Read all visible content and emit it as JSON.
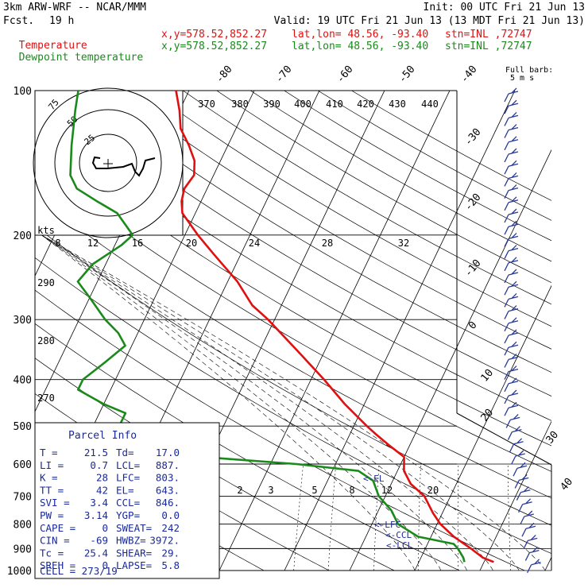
{
  "header": {
    "model": "3km ARW-WRF -- NCAR/MMM",
    "init": "Init: 00 UTC Fri 21 Jun 13",
    "fcst_label": "Fcst.",
    "fcst_value": "19 h",
    "valid": "Valid: 19 UTC Fri 21 Jun 13 (13 MDT Fri 21 Jun 13)",
    "temp_line": {
      "name": "Temperature",
      "coords": "x,y=578.52,852.27",
      "latlon": "lat,lon= 48.56, -93.40",
      "stn": "stn=INL ,72747"
    },
    "dew_line": {
      "name": "Dewpoint temperature",
      "coords": "x,y=578.52,852.27",
      "latlon": "lat,lon= 48.56, -93.40",
      "stn": "stn=INL ,72747"
    }
  },
  "colors": {
    "temperature": "#e01010",
    "dewpoint": "#1a8a1a",
    "axes": "#000000",
    "info_text": "#1a2a9a",
    "barbs": "#2a3a9a"
  },
  "full_barb_label": "Full barb:",
  "full_barb_value": "5 m s",
  "hodograph": {
    "rings": [
      "75",
      "50",
      "25"
    ],
    "speed_labels": [
      "kts",
      "8",
      "12",
      "16",
      "20",
      "24",
      "28",
      "32"
    ]
  },
  "theta_labels": [
    "370",
    "380",
    "390",
    "400",
    "410",
    "420",
    "430",
    "440"
  ],
  "theta_left_labels": [
    "290",
    "280",
    "270"
  ],
  "mixing_labels": [
    "2",
    "3",
    "5",
    "8",
    "12",
    "20"
  ],
  "level_markers": [
    "<-EL",
    "<-LFC",
    "<-CCL",
    "<-LCL"
  ],
  "parcel_info": {
    "title": "Parcel Info",
    "rows": [
      {
        "k1": "T",
        "v1": "21.5",
        "k2": "Td",
        "v2": "17.0"
      },
      {
        "k1": "LI",
        "v1": "0.7",
        "k2": "LCL",
        "v2": "887."
      },
      {
        "k1": "K",
        "v1": "28",
        "k2": "LFC",
        "v2": "803."
      },
      {
        "k1": "TT",
        "v1": "42",
        "k2": "EL",
        "v2": "643."
      },
      {
        "k1": "SVI",
        "v1": "3.4",
        "k2": "CCL",
        "v2": "846."
      },
      {
        "k1": "PW",
        "v1": "3.14",
        "k2": "YGP",
        "v2": "0.0"
      },
      {
        "k1": "CAPE",
        "v1": "0",
        "k2": "SWEAT",
        "v2": "242"
      },
      {
        "k1": "CIN",
        "v1": "-69",
        "k2": "HWBZ",
        "v2": "3972."
      },
      {
        "k1": "Tc",
        "v1": "25.4",
        "k2": "SHEAR",
        "v2": "29."
      },
      {
        "k1": "SREH",
        "v1": "0",
        "k2": "LAPSE",
        "v2": "5.8"
      }
    ],
    "cell": "CELL = 273/19"
  },
  "chart_data": {
    "type": "line",
    "title": "",
    "xlabel": "",
    "ylabel": "",
    "y_scale": "log-pressure",
    "ylim": [
      1000,
      100
    ],
    "pressure_ticks": [
      100,
      200,
      300,
      400,
      500,
      600,
      700,
      800,
      900,
      1000
    ],
    "temperature_ticks": [
      -80,
      -70,
      -60,
      -50,
      -40,
      -30,
      -20,
      -10,
      0,
      10,
      20,
      30,
      40
    ],
    "series": [
      {
        "name": "Temperature",
        "color": "#e01010",
        "points": [
          {
            "p": 960,
            "t": 21.5
          },
          {
            "p": 940,
            "t": 19.5
          },
          {
            "p": 900,
            "t": 17.0
          },
          {
            "p": 850,
            "t": 13.5
          },
          {
            "p": 800,
            "t": 10.5
          },
          {
            "p": 760,
            "t": 8.6
          },
          {
            "p": 700,
            "t": 6.0
          },
          {
            "p": 660,
            "t": 3.0
          },
          {
            "p": 620,
            "t": 1.0
          },
          {
            "p": 580,
            "t": 0.0
          },
          {
            "p": 550,
            "t": -3.0
          },
          {
            "p": 520,
            "t": -6.0
          },
          {
            "p": 500,
            "t": -8.0
          },
          {
            "p": 450,
            "t": -13.0
          },
          {
            "p": 400,
            "t": -18.0
          },
          {
            "p": 350,
            "t": -24.0
          },
          {
            "p": 300,
            "t": -31.0
          },
          {
            "p": 280,
            "t": -34.5
          },
          {
            "p": 250,
            "t": -38.5
          },
          {
            "p": 220,
            "t": -44.0
          },
          {
            "p": 200,
            "t": -48.0
          },
          {
            "p": 180,
            "t": -52.0
          },
          {
            "p": 170,
            "t": -53.0
          },
          {
            "p": 160,
            "t": -53.5
          },
          {
            "p": 150,
            "t": -53.0
          },
          {
            "p": 140,
            "t": -54.0
          },
          {
            "p": 130,
            "t": -56.0
          },
          {
            "p": 120,
            "t": -58.5
          },
          {
            "p": 110,
            "t": -60.0
          },
          {
            "p": 100,
            "t": -62.0
          }
        ]
      },
      {
        "name": "Dewpoint temperature",
        "color": "#1a8a1a",
        "points": [
          {
            "p": 960,
            "t": 17.0
          },
          {
            "p": 940,
            "t": 16.5
          },
          {
            "p": 900,
            "t": 15.0
          },
          {
            "p": 880,
            "t": 14.0
          },
          {
            "p": 850,
            "t": 8.0
          },
          {
            "p": 800,
            "t": 4.0
          },
          {
            "p": 750,
            "t": 2.0
          },
          {
            "p": 700,
            "t": -1.0
          },
          {
            "p": 650,
            "t": -3.0
          },
          {
            "p": 620,
            "t": -6.0
          },
          {
            "p": 600,
            "t": -16.0
          },
          {
            "p": 580,
            "t": -31.0
          },
          {
            "p": 560,
            "t": -44.0
          },
          {
            "p": 540,
            "t": -50.0
          },
          {
            "p": 525,
            "t": -53.0
          },
          {
            "p": 500,
            "t": -46.0
          },
          {
            "p": 470,
            "t": -46.0
          },
          {
            "p": 450,
            "t": -50.0
          },
          {
            "p": 420,
            "t": -55.0
          },
          {
            "p": 400,
            "t": -55.0
          },
          {
            "p": 370,
            "t": -53.0
          },
          {
            "p": 340,
            "t": -51.0
          },
          {
            "p": 320,
            "t": -53.0
          },
          {
            "p": 300,
            "t": -56.0
          },
          {
            "p": 270,
            "t": -60.0
          },
          {
            "p": 250,
            "t": -63.0
          },
          {
            "p": 230,
            "t": -62.0
          },
          {
            "p": 210,
            "t": -59.0
          },
          {
            "p": 200,
            "t": -58.0
          },
          {
            "p": 180,
            "t": -62.0
          },
          {
            "p": 170,
            "t": -66.0
          },
          {
            "p": 160,
            "t": -70.0
          },
          {
            "p": 150,
            "t": -72.0
          },
          {
            "p": 130,
            "t": -74.0
          },
          {
            "p": 110,
            "t": -76.0
          },
          {
            "p": 100,
            "t": -77.0
          }
        ]
      }
    ]
  }
}
